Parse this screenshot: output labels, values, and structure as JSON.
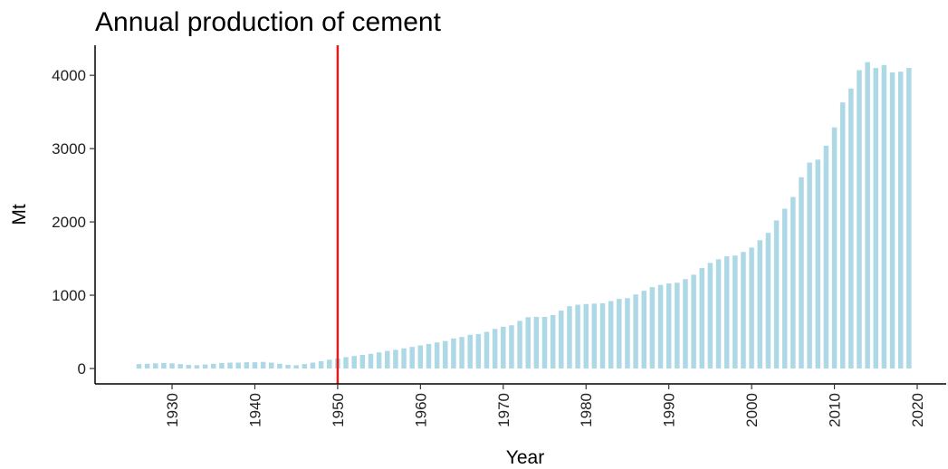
{
  "chart_data": {
    "type": "bar",
    "title": "Annual production of cement",
    "xlabel": "Year",
    "ylabel": "Mt",
    "x": [
      1926,
      1927,
      1928,
      1929,
      1930,
      1931,
      1932,
      1933,
      1934,
      1935,
      1936,
      1937,
      1938,
      1939,
      1940,
      1941,
      1942,
      1943,
      1944,
      1945,
      1946,
      1947,
      1948,
      1949,
      1950,
      1951,
      1952,
      1953,
      1954,
      1955,
      1956,
      1957,
      1958,
      1959,
      1960,
      1961,
      1962,
      1963,
      1964,
      1965,
      1966,
      1967,
      1968,
      1969,
      1970,
      1971,
      1972,
      1973,
      1974,
      1975,
      1976,
      1977,
      1978,
      1979,
      1980,
      1981,
      1982,
      1983,
      1984,
      1985,
      1986,
      1987,
      1988,
      1989,
      1990,
      1991,
      1992,
      1993,
      1994,
      1995,
      1996,
      1997,
      1998,
      1999,
      2000,
      2001,
      2002,
      2003,
      2004,
      2005,
      2006,
      2007,
      2008,
      2009,
      2010,
      2011,
      2012,
      2013,
      2014,
      2015,
      2016,
      2017,
      2018,
      2019
    ],
    "values": [
      60,
      65,
      70,
      75,
      70,
      60,
      50,
      45,
      55,
      65,
      75,
      80,
      80,
      85,
      85,
      90,
      80,
      65,
      50,
      45,
      60,
      80,
      100,
      120,
      135,
      155,
      170,
      185,
      200,
      220,
      240,
      255,
      275,
      295,
      315,
      335,
      355,
      375,
      410,
      430,
      460,
      470,
      500,
      540,
      570,
      590,
      650,
      700,
      705,
      705,
      730,
      790,
      850,
      870,
      880,
      885,
      890,
      920,
      950,
      960,
      1010,
      1060,
      1110,
      1140,
      1160,
      1170,
      1220,
      1280,
      1370,
      1440,
      1490,
      1530,
      1540,
      1590,
      1650,
      1750,
      1850,
      2020,
      2180,
      2340,
      2610,
      2810,
      2850,
      3040,
      3290,
      3630,
      3820,
      4070,
      4180,
      4100,
      4140,
      4040,
      4050,
      4100
    ],
    "color": "#add8e6",
    "vline": 1950,
    "vline_color": "#e41a1c",
    "xlim": [
      1920.7,
      2023.5
    ],
    "xticks": [
      1930,
      1940,
      1950,
      1960,
      1970,
      1980,
      1990,
      2000,
      2010,
      2020
    ],
    "ylim": [
      -210,
      4410
    ],
    "yticks": [
      0,
      1000,
      2000,
      3000,
      4000
    ]
  }
}
